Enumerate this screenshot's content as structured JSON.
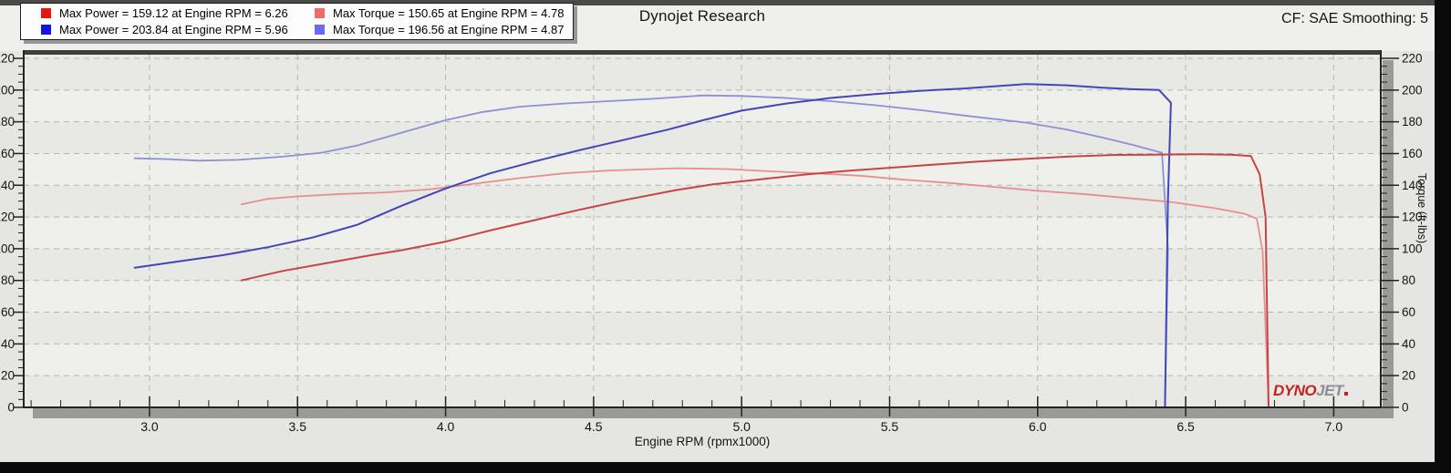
{
  "header": {
    "title": "Dynojet Research",
    "cf_label": "CF: SAE Smoothing: 5"
  },
  "legend": {
    "entries": [
      {
        "swatch": "#ee1111",
        "label": "Max Power = 159.12 at Engine RPM = 6.26"
      },
      {
        "swatch": "#f26b6b",
        "label": "Max Torque = 150.65 at Engine RPM = 4.78"
      },
      {
        "swatch": "#1515e0",
        "label": "Max Power = 203.84 at Engine RPM = 5.96"
      },
      {
        "swatch": "#6b6bf2",
        "label": "Max Torque = 196.56 at Engine RPM = 4.87"
      }
    ]
  },
  "watermark": {
    "part1": "DYNO",
    "part2": "JET"
  },
  "chart_data": {
    "type": "line",
    "title": "Dynojet Research",
    "xlabel": "Engine RPM (rpmx1000)",
    "ylabel_right": "Torque (ft-lbs)",
    "xlim": [
      2.575,
      7.159
    ],
    "ylim": [
      0,
      220
    ],
    "x_ticks": [
      3.0,
      3.5,
      4.0,
      4.5,
      5.0,
      5.5,
      6.0,
      6.5,
      7.0
    ],
    "x_tick_labels": [
      "3.0",
      "3.5",
      "4.0",
      "4.5",
      "5.0",
      "5.5",
      "6.0",
      "6.5",
      "7.0"
    ],
    "x_minor_step": 0.1,
    "y_ticks": [
      0,
      20,
      40,
      60,
      80,
      100,
      120,
      140,
      160,
      180,
      200,
      220
    ],
    "y_minor_step": 5,
    "grid": "dashed",
    "legend_position": "top-left",
    "series": [
      {
        "name": "run2-torque",
        "label": "Max Torque = 196.56 at Engine RPM = 4.87",
        "color": "#8f8fd6",
        "width": 1.8,
        "points": [
          [
            2.95,
            157
          ],
          [
            3.05,
            156.5
          ],
          [
            3.17,
            155.5
          ],
          [
            3.3,
            156
          ],
          [
            3.45,
            158
          ],
          [
            3.58,
            160.5
          ],
          [
            3.7,
            165
          ],
          [
            3.85,
            173
          ],
          [
            4.0,
            181
          ],
          [
            4.12,
            186
          ],
          [
            4.25,
            189.5
          ],
          [
            4.4,
            191.5
          ],
          [
            4.55,
            193
          ],
          [
            4.7,
            194.5
          ],
          [
            4.87,
            196.6
          ],
          [
            5.0,
            196.3
          ],
          [
            5.15,
            195
          ],
          [
            5.3,
            193
          ],
          [
            5.45,
            190.5
          ],
          [
            5.6,
            187.5
          ],
          [
            5.75,
            184
          ],
          [
            5.96,
            179.5
          ],
          [
            6.1,
            175
          ],
          [
            6.22,
            170
          ],
          [
            6.32,
            165.5
          ],
          [
            6.42,
            160.5
          ],
          [
            6.44,
            100
          ],
          [
            6.43,
            0
          ]
        ]
      },
      {
        "name": "run1-torque",
        "label": "Max Torque = 150.65 at Engine RPM = 4.78",
        "color": "#e59090",
        "width": 1.8,
        "points": [
          [
            3.31,
            128
          ],
          [
            3.4,
            131.5
          ],
          [
            3.5,
            133
          ],
          [
            3.65,
            134.5
          ],
          [
            3.8,
            135.5
          ],
          [
            3.95,
            137.5
          ],
          [
            4.1,
            141
          ],
          [
            4.25,
            144.5
          ],
          [
            4.4,
            147.5
          ],
          [
            4.55,
            149.3
          ],
          [
            4.78,
            150.7
          ],
          [
            4.95,
            150.2
          ],
          [
            5.1,
            148.8
          ],
          [
            5.25,
            147.5
          ],
          [
            5.4,
            146
          ],
          [
            5.55,
            143.5
          ],
          [
            5.7,
            141.5
          ],
          [
            5.85,
            139
          ],
          [
            6.0,
            136.5
          ],
          [
            6.15,
            134.5
          ],
          [
            6.3,
            132
          ],
          [
            6.45,
            129.5
          ],
          [
            6.6,
            125.5
          ],
          [
            6.7,
            122
          ],
          [
            6.74,
            119
          ],
          [
            6.76,
            98
          ],
          [
            6.78,
            0
          ]
        ]
      },
      {
        "name": "run2-power",
        "label": "Max Power = 203.84 at Engine RPM = 5.96",
        "color": "#4545b8",
        "width": 2,
        "points": [
          [
            2.95,
            88
          ],
          [
            3.1,
            92
          ],
          [
            3.25,
            96
          ],
          [
            3.4,
            101
          ],
          [
            3.55,
            107
          ],
          [
            3.7,
            115
          ],
          [
            3.85,
            127
          ],
          [
            4.0,
            138
          ],
          [
            4.15,
            147.5
          ],
          [
            4.3,
            155
          ],
          [
            4.45,
            162
          ],
          [
            4.6,
            168.5
          ],
          [
            4.75,
            175
          ],
          [
            4.87,
            181
          ],
          [
            5.0,
            187
          ],
          [
            5.15,
            191.5
          ],
          [
            5.3,
            195
          ],
          [
            5.45,
            197.5
          ],
          [
            5.6,
            199.5
          ],
          [
            5.75,
            201
          ],
          [
            5.96,
            203.8
          ],
          [
            6.1,
            203
          ],
          [
            6.22,
            201.5
          ],
          [
            6.32,
            200.5
          ],
          [
            6.41,
            200
          ],
          [
            6.45,
            192
          ],
          [
            6.44,
            130
          ],
          [
            6.43,
            0
          ]
        ]
      },
      {
        "name": "run1-power",
        "label": "Max Power = 159.12 at Engine RPM = 6.26",
        "color": "#c64545",
        "width": 2,
        "points": [
          [
            3.31,
            80
          ],
          [
            3.45,
            86
          ],
          [
            3.6,
            91
          ],
          [
            3.75,
            96
          ],
          [
            3.85,
            99
          ],
          [
            4.0,
            104.5
          ],
          [
            4.15,
            111.5
          ],
          [
            4.3,
            118
          ],
          [
            4.45,
            124.5
          ],
          [
            4.6,
            130.5
          ],
          [
            4.78,
            137
          ],
          [
            4.9,
            140.5
          ],
          [
            5.05,
            143.5
          ],
          [
            5.2,
            146.5
          ],
          [
            5.35,
            149
          ],
          [
            5.5,
            151
          ],
          [
            5.65,
            153
          ],
          [
            5.8,
            155
          ],
          [
            5.95,
            156.5
          ],
          [
            6.1,
            158
          ],
          [
            6.26,
            159.1
          ],
          [
            6.4,
            159.3
          ],
          [
            6.55,
            159.5
          ],
          [
            6.65,
            159.3
          ],
          [
            6.72,
            158.5
          ],
          [
            6.75,
            147
          ],
          [
            6.77,
            120
          ],
          [
            6.78,
            0
          ]
        ]
      }
    ]
  }
}
